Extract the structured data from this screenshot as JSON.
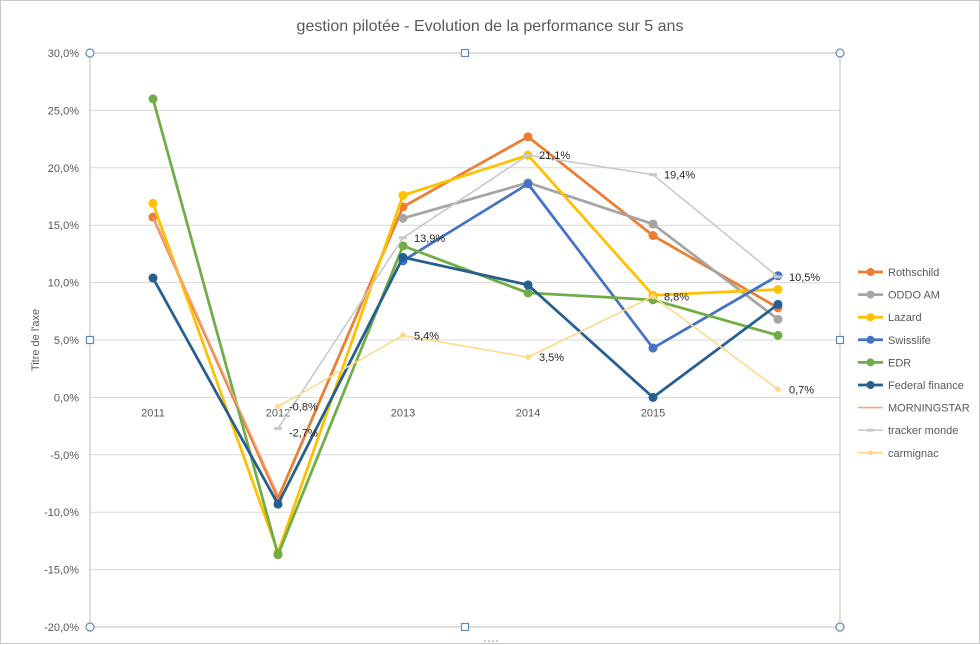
{
  "chart_data": {
    "type": "line",
    "title": "gestion pilotée - Evolution de la performance sur 5 ans",
    "xlabel": "",
    "ylabel": "Titre de l'axe",
    "categories": [
      "2011",
      "2012",
      "2013",
      "2014",
      "2015",
      ""
    ],
    "ylim": [
      -0.2,
      0.3
    ],
    "y_tick_step": 0.05,
    "y_ticks": [
      "30,0%",
      "25,0%",
      "20,0%",
      "15,0%",
      "10,0%",
      "5,0%",
      "0,0%",
      "-5,0%",
      "-10,0%",
      "-15,0%",
      "-20,0%"
    ],
    "grid": true,
    "legend_position": "right",
    "series": [
      {
        "name": "Rothschild",
        "color": "#ED7D31",
        "marker": "circle",
        "values": [
          0.157,
          -0.088,
          0.166,
          0.227,
          0.141,
          0.078
        ]
      },
      {
        "name": "ODDO AM",
        "color": "#A5A5A5",
        "marker": "circle",
        "values": [
          null,
          null,
          0.156,
          0.187,
          0.151,
          0.068
        ]
      },
      {
        "name": "Lazard",
        "color": "#FFC000",
        "marker": "circle",
        "values": [
          0.169,
          -0.135,
          0.176,
          0.211,
          0.089,
          0.094
        ]
      },
      {
        "name": "Swisslife",
        "color": "#4472C4",
        "marker": "circle",
        "values": [
          null,
          null,
          0.119,
          0.186,
          0.043,
          0.106
        ]
      },
      {
        "name": "EDR",
        "color": "#70AD47",
        "marker": "circle",
        "values": [
          0.26,
          -0.137,
          0.132,
          0.091,
          0.085,
          0.054
        ]
      },
      {
        "name": "Federal finance",
        "color": "#255E91",
        "marker": "circle",
        "values": [
          0.104,
          -0.093,
          0.122,
          0.098,
          0.0,
          0.081
        ]
      },
      {
        "name": "MORNINGSTAR",
        "color": "#F4A582",
        "marker": "none",
        "values": [
          0.157,
          -0.085,
          null,
          null,
          null,
          null
        ]
      },
      {
        "name": "tracker monde",
        "color": "#C9C9C9",
        "marker": "dash",
        "values": [
          null,
          -0.027,
          0.139,
          0.211,
          0.194,
          0.105
        ],
        "labels": [
          "",
          "-2,7%",
          "13,9%",
          "21,1%",
          "19,4%",
          "10,5%"
        ]
      },
      {
        "name": "carmignac",
        "color": "#FFD98A",
        "marker": "diamond",
        "values": [
          null,
          -0.008,
          0.054,
          0.035,
          0.088,
          0.007
        ],
        "labels": [
          "",
          "-0,8%",
          "5,4%",
          "3,5%",
          "8,8%",
          "0,7%"
        ]
      }
    ]
  }
}
